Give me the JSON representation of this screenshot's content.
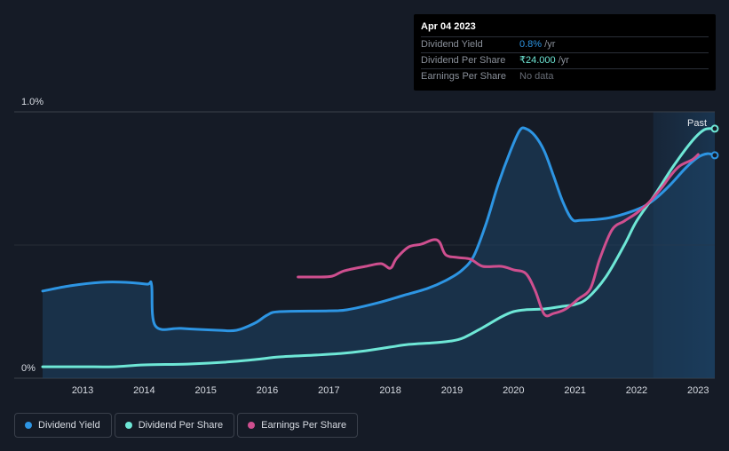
{
  "tooltip": {
    "date": "Apr 04 2023",
    "rows": [
      {
        "label": "Dividend Yield",
        "value": "0.8%",
        "unit": " /yr"
      },
      {
        "label": "Dividend Per Share",
        "value": "₹24.000",
        "unit": " /yr"
      },
      {
        "label": "Earnings Per Share",
        "value": "No data",
        "unit": ""
      }
    ]
  },
  "past_label": "Past",
  "legend": [
    {
      "label": "Dividend Yield",
      "color": "#2d95e3"
    },
    {
      "label": "Dividend Per Share",
      "color": "#6ee7d6"
    },
    {
      "label": "Earnings Per Share",
      "color": "#cf4f8f"
    }
  ],
  "chart_data": {
    "type": "line",
    "title": "",
    "xlabel": "",
    "ylabel": "",
    "xlim": [
      2012.35,
      2023.27
    ],
    "ylim": [
      0,
      1.0
    ],
    "y_tick_labels": [
      "0%",
      "1.0%"
    ],
    "x_ticks": [
      2013,
      2014,
      2015,
      2016,
      2017,
      2018,
      2019,
      2020,
      2021,
      2022,
      2023
    ],
    "past_region_start": 2022.27,
    "series": [
      {
        "name": "Dividend Yield",
        "color": "#2d95e3",
        "area": true,
        "points": [
          [
            2012.35,
            0.327
          ],
          [
            2012.8,
            0.347
          ],
          [
            2013.3,
            0.36
          ],
          [
            2013.7,
            0.36
          ],
          [
            2014.05,
            0.353
          ],
          [
            2014.12,
            0.35
          ],
          [
            2014.18,
            0.197
          ],
          [
            2014.6,
            0.187
          ],
          [
            2015.2,
            0.18
          ],
          [
            2015.5,
            0.18
          ],
          [
            2015.8,
            0.207
          ],
          [
            2016.0,
            0.237
          ],
          [
            2016.2,
            0.25
          ],
          [
            2017.0,
            0.253
          ],
          [
            2017.3,
            0.257
          ],
          [
            2017.8,
            0.283
          ],
          [
            2018.2,
            0.31
          ],
          [
            2018.6,
            0.337
          ],
          [
            2018.9,
            0.367
          ],
          [
            2019.15,
            0.403
          ],
          [
            2019.35,
            0.457
          ],
          [
            2019.55,
            0.577
          ],
          [
            2019.75,
            0.727
          ],
          [
            2019.95,
            0.853
          ],
          [
            2020.1,
            0.93
          ],
          [
            2020.2,
            0.937
          ],
          [
            2020.35,
            0.91
          ],
          [
            2020.5,
            0.853
          ],
          [
            2020.65,
            0.76
          ],
          [
            2020.8,
            0.663
          ],
          [
            2020.95,
            0.597
          ],
          [
            2021.1,
            0.593
          ],
          [
            2021.5,
            0.6
          ],
          [
            2021.8,
            0.617
          ],
          [
            2022.1,
            0.643
          ],
          [
            2022.3,
            0.673
          ],
          [
            2022.55,
            0.727
          ],
          [
            2022.8,
            0.79
          ],
          [
            2023.0,
            0.83
          ],
          [
            2023.15,
            0.843
          ],
          [
            2023.27,
            0.837
          ]
        ]
      },
      {
        "name": "Dividend Per Share",
        "color": "#6ee7d6",
        "area": false,
        "points": [
          [
            2012.35,
            0.043
          ],
          [
            2013.0,
            0.043
          ],
          [
            2013.5,
            0.043
          ],
          [
            2014.0,
            0.05
          ],
          [
            2014.7,
            0.053
          ],
          [
            2015.3,
            0.06
          ],
          [
            2015.8,
            0.07
          ],
          [
            2016.2,
            0.08
          ],
          [
            2016.8,
            0.087
          ],
          [
            2017.2,
            0.093
          ],
          [
            2017.6,
            0.103
          ],
          [
            2018.0,
            0.117
          ],
          [
            2018.3,
            0.127
          ],
          [
            2018.7,
            0.133
          ],
          [
            2019.0,
            0.14
          ],
          [
            2019.2,
            0.153
          ],
          [
            2019.5,
            0.19
          ],
          [
            2019.8,
            0.23
          ],
          [
            2020.0,
            0.25
          ],
          [
            2020.2,
            0.257
          ],
          [
            2020.5,
            0.26
          ],
          [
            2020.8,
            0.27
          ],
          [
            2021.0,
            0.277
          ],
          [
            2021.2,
            0.3
          ],
          [
            2021.5,
            0.38
          ],
          [
            2021.8,
            0.5
          ],
          [
            2022.0,
            0.59
          ],
          [
            2022.3,
            0.69
          ],
          [
            2022.6,
            0.797
          ],
          [
            2022.9,
            0.89
          ],
          [
            2023.1,
            0.933
          ],
          [
            2023.27,
            0.937
          ]
        ]
      },
      {
        "name": "Earnings Per Share",
        "color": "#cf4f8f",
        "area": false,
        "points": [
          [
            2016.5,
            0.38
          ],
          [
            2016.8,
            0.38
          ],
          [
            2017.05,
            0.383
          ],
          [
            2017.25,
            0.403
          ],
          [
            2017.6,
            0.42
          ],
          [
            2017.85,
            0.43
          ],
          [
            2018.0,
            0.413
          ],
          [
            2018.1,
            0.45
          ],
          [
            2018.3,
            0.493
          ],
          [
            2018.5,
            0.503
          ],
          [
            2018.7,
            0.52
          ],
          [
            2018.8,
            0.51
          ],
          [
            2018.9,
            0.463
          ],
          [
            2019.1,
            0.453
          ],
          [
            2019.3,
            0.447
          ],
          [
            2019.5,
            0.42
          ],
          [
            2019.8,
            0.42
          ],
          [
            2020.0,
            0.407
          ],
          [
            2020.2,
            0.393
          ],
          [
            2020.35,
            0.33
          ],
          [
            2020.5,
            0.24
          ],
          [
            2020.65,
            0.243
          ],
          [
            2020.85,
            0.26
          ],
          [
            2021.05,
            0.297
          ],
          [
            2021.25,
            0.337
          ],
          [
            2021.4,
            0.447
          ],
          [
            2021.6,
            0.557
          ],
          [
            2021.8,
            0.59
          ],
          [
            2022.0,
            0.62
          ],
          [
            2022.2,
            0.66
          ],
          [
            2022.4,
            0.713
          ],
          [
            2022.55,
            0.76
          ],
          [
            2022.7,
            0.797
          ],
          [
            2022.9,
            0.82
          ],
          [
            2023.0,
            0.84
          ]
        ]
      }
    ]
  }
}
